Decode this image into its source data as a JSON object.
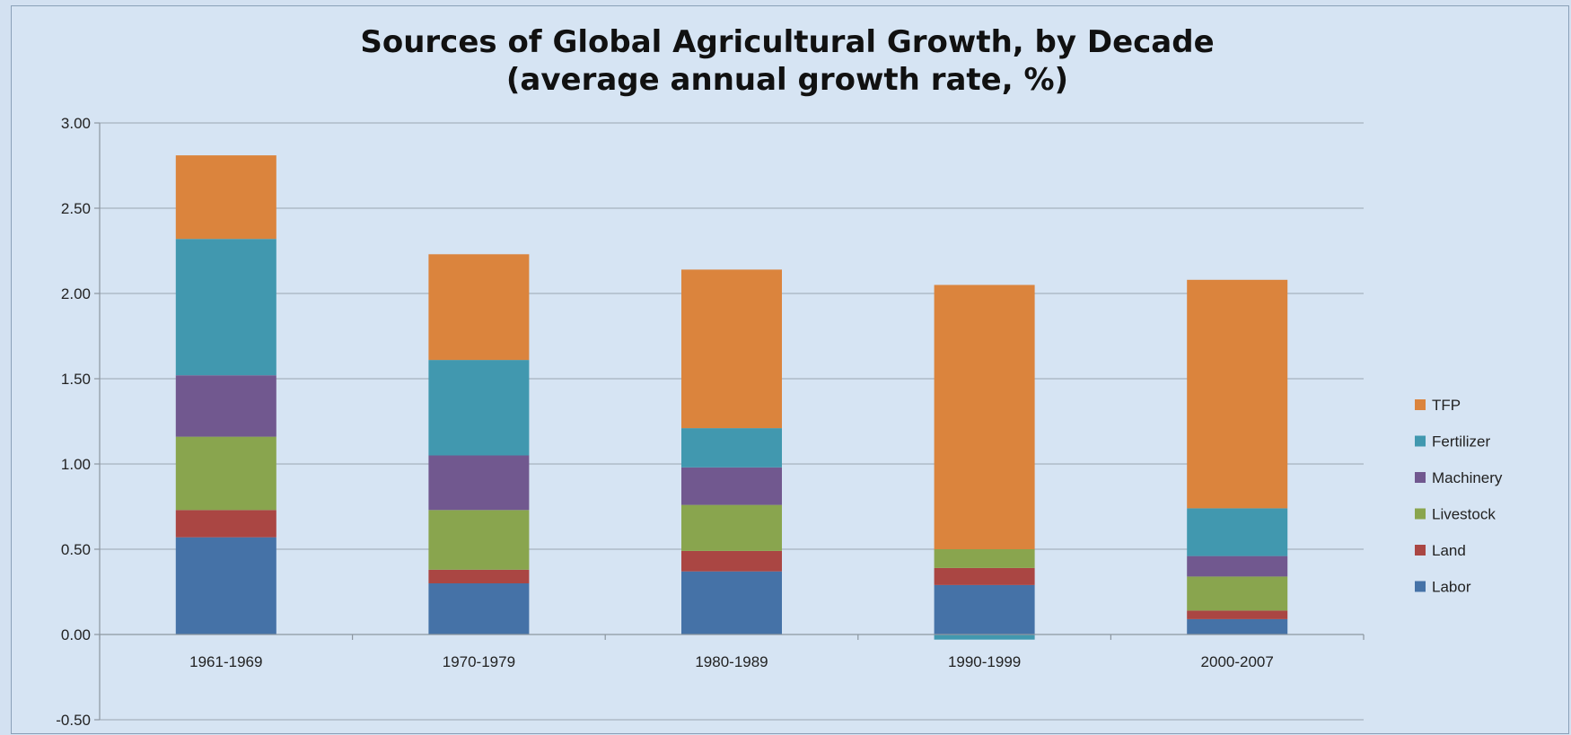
{
  "chart_data": {
    "type": "bar",
    "stacked": true,
    "title": "Sources of Global Agricultural Growth, by Decade",
    "subtitle": "(average annual growth rate, %)",
    "categories": [
      "1961-1969",
      "1970-1979",
      "1980-1989",
      "1990-1999",
      "2000-2007"
    ],
    "ylim": [
      -0.5,
      3.0
    ],
    "yticks": [
      "3.00",
      "2.50",
      "2.00",
      "1.50",
      "1.00",
      "0.50",
      "0.00",
      "-0.50"
    ],
    "ytick_values": [
      3.0,
      2.5,
      2.0,
      1.5,
      1.0,
      0.5,
      0.0,
      -0.5
    ],
    "grid": true,
    "legend_position": "right",
    "series": [
      {
        "name": "Labor",
        "color": "#4572a7",
        "values": [
          0.57,
          0.3,
          0.37,
          0.29,
          0.09
        ]
      },
      {
        "name": "Land",
        "color": "#aa4643",
        "values": [
          0.16,
          0.08,
          0.12,
          0.1,
          0.05
        ]
      },
      {
        "name": "Livestock",
        "color": "#89a54e",
        "values": [
          0.43,
          0.35,
          0.27,
          0.11,
          0.2
        ]
      },
      {
        "name": "Machinery",
        "color": "#71588f",
        "values": [
          0.36,
          0.32,
          0.22,
          0.0,
          0.12
        ]
      },
      {
        "name": "Fertilizer",
        "color": "#4198af",
        "values": [
          0.8,
          0.56,
          0.23,
          -0.03,
          0.28
        ]
      },
      {
        "name": "TFP",
        "color": "#db843d",
        "values": [
          0.49,
          0.62,
          0.93,
          1.55,
          1.34
        ]
      }
    ],
    "legend_order": [
      "TFP",
      "Fertilizer",
      "Machinery",
      "Livestock",
      "Land",
      "Labor"
    ]
  }
}
